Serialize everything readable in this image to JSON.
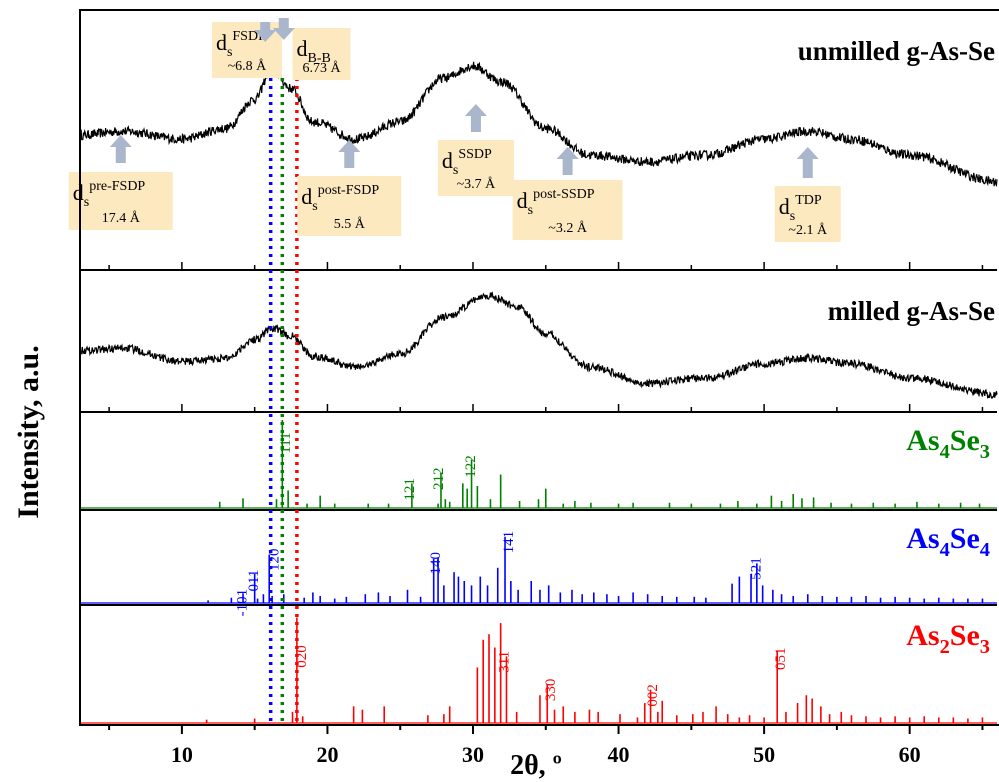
{
  "chart_data": {
    "type": "line",
    "xlabel": "2θ, º",
    "ylabel": "Intensity, a.u.",
    "xlim": [
      3,
      66
    ],
    "xticks": [
      10,
      20,
      30,
      40,
      50,
      60
    ],
    "xtick_labels": [
      "10",
      "20",
      "30",
      "40",
      "50",
      "60"
    ],
    "grid": false,
    "colors": {
      "curve": "#000000",
      "As4Se3": "#008000",
      "As4Se4": "#0000ff",
      "As2Se3": "#ff0000",
      "box": "#fde9c0",
      "arrow": "#a9b6cb"
    },
    "panels": [
      {
        "id": "unmilled",
        "label": "unmilled g-As-Se",
        "x": [
          3,
          6,
          10,
          13,
          15,
          16.2,
          17.5,
          19,
          22,
          25,
          28,
          30,
          32,
          35,
          38,
          42,
          46,
          50,
          53,
          56,
          60,
          66
        ],
        "y": [
          0.45,
          0.48,
          0.42,
          0.5,
          0.72,
          0.95,
          0.8,
          0.55,
          0.42,
          0.55,
          0.88,
          0.97,
          0.85,
          0.5,
          0.3,
          0.25,
          0.3,
          0.42,
          0.48,
          0.42,
          0.3,
          0.1
        ]
      },
      {
        "id": "milled",
        "label": "milled g-As-Se",
        "x": [
          3,
          6,
          10,
          13,
          15,
          16.2,
          17.5,
          19,
          22,
          25,
          28,
          31,
          33,
          35,
          38,
          42,
          46,
          50,
          53,
          56,
          60,
          66
        ],
        "y": [
          0.45,
          0.47,
          0.35,
          0.38,
          0.55,
          0.65,
          0.58,
          0.4,
          0.3,
          0.42,
          0.75,
          0.95,
          0.85,
          0.6,
          0.3,
          0.15,
          0.2,
          0.33,
          0.38,
          0.33,
          0.2,
          0.05
        ]
      },
      {
        "id": "As4Se3",
        "label_base": "As",
        "label_sub1": "4",
        "label_mid": "Se",
        "label_sub2": "3",
        "peaks": [
          [
            12.6,
            0.07
          ],
          [
            14.2,
            0.11
          ],
          [
            16.5,
            0.1
          ],
          [
            16.9,
            1.0
          ],
          [
            17.3,
            0.2
          ],
          [
            18.6,
            0.05
          ],
          [
            19.5,
            0.14
          ],
          [
            20.5,
            0.05
          ],
          [
            22.8,
            0.05
          ],
          [
            24.2,
            0.05
          ],
          [
            25.8,
            0.28
          ],
          [
            27.6,
            0.05
          ],
          [
            27.8,
            0.4
          ],
          [
            28.1,
            0.1
          ],
          [
            28.4,
            0.07
          ],
          [
            29.3,
            0.28
          ],
          [
            29.6,
            0.22
          ],
          [
            29.9,
            0.55
          ],
          [
            30.3,
            0.25
          ],
          [
            31.2,
            0.1
          ],
          [
            31.9,
            0.38
          ],
          [
            33.2,
            0.08
          ],
          [
            34.5,
            0.1
          ],
          [
            35.0,
            0.22
          ],
          [
            36.2,
            0.05
          ],
          [
            37.0,
            0.08
          ],
          [
            38.1,
            0.06
          ],
          [
            40.0,
            0.05
          ],
          [
            41.0,
            0.06
          ],
          [
            43.5,
            0.06
          ],
          [
            45.0,
            0.05
          ],
          [
            47.0,
            0.05
          ],
          [
            48.2,
            0.08
          ],
          [
            49.5,
            0.05
          ],
          [
            50.5,
            0.14
          ],
          [
            51.2,
            0.08
          ],
          [
            52.0,
            0.16
          ],
          [
            52.6,
            0.11
          ],
          [
            53.4,
            0.12
          ],
          [
            54.6,
            0.06
          ],
          [
            56.0,
            0.05
          ],
          [
            57.5,
            0.06
          ],
          [
            59.0,
            0.05
          ],
          [
            60.5,
            0.07
          ],
          [
            62.0,
            0.05
          ],
          [
            63.5,
            0.06
          ],
          [
            64.8,
            0.05
          ]
        ],
        "hkl": [
          {
            "x": 17.1,
            "y": 0.86,
            "label": "111"
          },
          {
            "x": 25.6,
            "y": 0.34,
            "label": "121"
          },
          {
            "x": 27.6,
            "y": 0.46,
            "label": "212"
          },
          {
            "x": 29.8,
            "y": 0.6,
            "label": "122"
          }
        ]
      },
      {
        "id": "As4Se4",
        "label_base": "As",
        "label_sub1": "4",
        "label_mid": "Se",
        "label_sub2": "4",
        "peaks": [
          [
            11.8,
            0.03
          ],
          [
            13.4,
            0.06
          ],
          [
            14.2,
            0.11
          ],
          [
            15.0,
            0.33
          ],
          [
            15.2,
            0.05
          ],
          [
            15.6,
            0.1
          ],
          [
            16.0,
            0.55
          ],
          [
            16.2,
            0.08
          ],
          [
            17.0,
            0.1
          ],
          [
            18.4,
            0.06
          ],
          [
            19.0,
            0.12
          ],
          [
            19.5,
            0.08
          ],
          [
            20.5,
            0.05
          ],
          [
            21.3,
            0.07
          ],
          [
            22.6,
            0.1
          ],
          [
            23.5,
            0.12
          ],
          [
            24.3,
            0.08
          ],
          [
            25.5,
            0.15
          ],
          [
            26.4,
            0.07
          ],
          [
            27.3,
            0.5
          ],
          [
            27.6,
            0.52
          ],
          [
            28.0,
            0.2
          ],
          [
            28.7,
            0.35
          ],
          [
            29.0,
            0.3
          ],
          [
            29.4,
            0.25
          ],
          [
            29.9,
            0.2
          ],
          [
            30.5,
            0.3
          ],
          [
            31.0,
            0.2
          ],
          [
            31.7,
            0.4
          ],
          [
            32.2,
            0.75
          ],
          [
            32.6,
            0.25
          ],
          [
            33.1,
            0.15
          ],
          [
            34.0,
            0.25
          ],
          [
            34.6,
            0.15
          ],
          [
            35.2,
            0.2
          ],
          [
            36.0,
            0.12
          ],
          [
            36.8,
            0.15
          ],
          [
            37.5,
            0.1
          ],
          [
            38.3,
            0.12
          ],
          [
            39.2,
            0.1
          ],
          [
            40.0,
            0.08
          ],
          [
            41.0,
            0.12
          ],
          [
            42.0,
            0.1
          ],
          [
            43.0,
            0.08
          ],
          [
            44.0,
            0.07
          ],
          [
            45.2,
            0.07
          ],
          [
            46.0,
            0.06
          ],
          [
            47.8,
            0.22
          ],
          [
            48.3,
            0.3
          ],
          [
            49.1,
            0.33
          ],
          [
            49.5,
            0.45
          ],
          [
            49.9,
            0.2
          ],
          [
            50.6,
            0.15
          ],
          [
            51.2,
            0.1
          ],
          [
            52.0,
            0.08
          ],
          [
            53.0,
            0.1
          ],
          [
            54.0,
            0.08
          ],
          [
            55.0,
            0.07
          ],
          [
            56.0,
            0.07
          ],
          [
            57.0,
            0.08
          ],
          [
            58.0,
            0.06
          ],
          [
            59.0,
            0.07
          ],
          [
            60.0,
            0.06
          ],
          [
            61.0,
            0.05
          ],
          [
            62.0,
            0.06
          ],
          [
            63.0,
            0.05
          ],
          [
            64.0,
            0.05
          ],
          [
            65.0,
            0.05
          ]
        ],
        "hkl": [
          {
            "x": 14.1,
            "y": 0.16,
            "label": "-101"
          },
          {
            "x": 14.9,
            "y": 0.38,
            "label": "011"
          },
          {
            "x": 16.3,
            "y": 0.62,
            "label": "120"
          },
          {
            "x": 27.4,
            "y": 0.58,
            "label": "140"
          },
          {
            "x": 32.4,
            "y": 0.82,
            "label": "141"
          },
          {
            "x": 49.4,
            "y": 0.52,
            "label": "-521"
          }
        ]
      },
      {
        "id": "As2Se3",
        "label_base": "As",
        "label_sub1": "2",
        "label_mid": "Se",
        "label_sub2": "3",
        "peaks": [
          [
            11.7,
            0.03
          ],
          [
            15.0,
            0.04
          ],
          [
            17.6,
            0.1
          ],
          [
            17.9,
            0.95
          ],
          [
            18.3,
            0.06
          ],
          [
            21.8,
            0.15
          ],
          [
            22.4,
            0.12
          ],
          [
            23.9,
            0.15
          ],
          [
            26.9,
            0.07
          ],
          [
            28.0,
            0.08
          ],
          [
            28.4,
            0.15
          ],
          [
            30.3,
            0.5
          ],
          [
            30.7,
            0.75
          ],
          [
            31.1,
            0.8
          ],
          [
            31.5,
            0.68
          ],
          [
            31.9,
            0.9
          ],
          [
            32.3,
            0.6
          ],
          [
            33.0,
            0.1
          ],
          [
            34.6,
            0.25
          ],
          [
            35.1,
            0.35
          ],
          [
            35.6,
            0.12
          ],
          [
            36.2,
            0.15
          ],
          [
            37.0,
            0.1
          ],
          [
            38.0,
            0.12
          ],
          [
            38.6,
            0.1
          ],
          [
            40.1,
            0.08
          ],
          [
            41.3,
            0.05
          ],
          [
            41.8,
            0.18
          ],
          [
            42.2,
            0.3
          ],
          [
            42.7,
            0.1
          ],
          [
            43.0,
            0.2
          ],
          [
            44.0,
            0.07
          ],
          [
            45.1,
            0.08
          ],
          [
            45.8,
            0.1
          ],
          [
            46.7,
            0.15
          ],
          [
            47.5,
            0.08
          ],
          [
            48.3,
            0.05
          ],
          [
            49.0,
            0.07
          ],
          [
            50.0,
            0.05
          ],
          [
            50.9,
            0.65
          ],
          [
            51.5,
            0.1
          ],
          [
            52.3,
            0.18
          ],
          [
            52.9,
            0.25
          ],
          [
            53.3,
            0.22
          ],
          [
            53.9,
            0.15
          ],
          [
            54.5,
            0.08
          ],
          [
            55.3,
            0.1
          ],
          [
            56.0,
            0.07
          ],
          [
            57.0,
            0.06
          ],
          [
            58.0,
            0.05
          ],
          [
            59.0,
            0.06
          ],
          [
            60.0,
            0.05
          ],
          [
            61.0,
            0.06
          ],
          [
            62.0,
            0.05
          ],
          [
            63.0,
            0.05
          ],
          [
            64.0,
            0.04
          ],
          [
            65.0,
            0.05
          ]
        ],
        "hkl": [
          {
            "x": 18.2,
            "y": 0.7,
            "label": "020"
          },
          {
            "x": 32.1,
            "y": 0.65,
            "label": "311"
          },
          {
            "x": 35.3,
            "y": 0.4,
            "label": "330"
          },
          {
            "x": 42.3,
            "y": 0.35,
            "label": "002"
          },
          {
            "x": 51.1,
            "y": 0.68,
            "label": "051"
          }
        ]
      }
    ],
    "vlines": [
      {
        "x": 16.1,
        "color": "#0000ff"
      },
      {
        "x": 16.9,
        "color": "#008000"
      },
      {
        "x": 17.9,
        "color": "#ff0000"
      }
    ],
    "annotations": [
      {
        "id": "fsdp",
        "sym": "d",
        "sub": "s",
        "sup": "FSDP",
        "value": "~6.8 Å",
        "x": 15.5,
        "arrow_dir": "down"
      },
      {
        "id": "bb",
        "sym": "d",
        "sub": "B-B",
        "sup": "",
        "value": "6.73 Å",
        "x": 18.5,
        "arrow_dir": "down",
        "arrow_x": 17.0
      },
      {
        "id": "prefsdp",
        "sym": "d",
        "sub": "s",
        "sup": "pre-FSDP",
        "value": "17.4 Å",
        "x": 5.8,
        "arrow_dir": "up"
      },
      {
        "id": "postfsdp",
        "sym": "d",
        "sub": "s",
        "sup": "post-FSDP",
        "value": "5.5 Å",
        "x": 21.5,
        "arrow_dir": "up"
      },
      {
        "id": "ssdp",
        "sym": "d",
        "sub": "s",
        "sup": "SSDP",
        "value": "~3.7 Å",
        "x": 30.2,
        "arrow_dir": "up"
      },
      {
        "id": "postssdp",
        "sym": "d",
        "sub": "s",
        "sup": "post-SSDP",
        "value": "~3.2 Å",
        "x": 36.5,
        "arrow_dir": "up"
      },
      {
        "id": "tdp",
        "sym": "d",
        "sub": "s",
        "sup": "TDP",
        "value": "~2.1 Å",
        "x": 53.0,
        "arrow_dir": "up"
      }
    ]
  }
}
